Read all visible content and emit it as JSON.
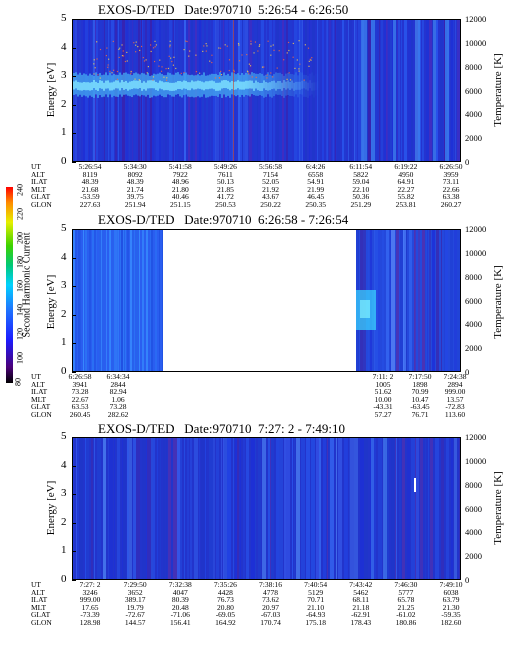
{
  "colorbar": {
    "label": "Second Harmonic Current",
    "ticks": [
      "240",
      "220",
      "200",
      "180",
      "160",
      "140",
      "120",
      "100",
      "80"
    ]
  },
  "row_labels": [
    "UT",
    "ALT",
    "ILAT",
    "MLT",
    "GLAT",
    "GLON"
  ],
  "chart_data": [
    {
      "type": "heatmap",
      "title": "EXOS-D/TED   Date:970710  5:26:54 - 6:26:50",
      "ylabel": "Energy [eV]",
      "ylabel_right": "Temperature [K]",
      "ylim": [
        0,
        5
      ],
      "ylim_right": [
        0,
        12000
      ],
      "yticks": [
        "0",
        "1",
        "2",
        "3",
        "4",
        "5"
      ],
      "yticks_right": [
        "0",
        "2000",
        "4000",
        "6000",
        "8000",
        "10000",
        "12000"
      ],
      "x_table": {
        "UT": [
          "5:26:54",
          "5:34:30",
          "5:41:58",
          "5:49:26",
          "5:56:58",
          "6:4:26",
          "6:11:54",
          "6:19:22",
          "6:26:50"
        ],
        "ALT": [
          "8119",
          "8092",
          "7922",
          "7611",
          "7154",
          "6558",
          "5822",
          "4950",
          "3959"
        ],
        "ILAT": [
          "48.39",
          "48.39",
          "48.96",
          "50.13",
          "52.05",
          "54.91",
          "59.04",
          "64.91",
          "73.11"
        ],
        "MLT": [
          "21.68",
          "21.74",
          "21.80",
          "21.85",
          "21.92",
          "21.99",
          "22.10",
          "22.27",
          "22.66"
        ],
        "GLAT": [
          "-53.59",
          "39.75",
          "40.46",
          "41.72",
          "43.67",
          "46.45",
          "50.36",
          "55.82",
          "63.38"
        ],
        "GLON": [
          "227.63",
          "251.94",
          "251.15",
          "250.53",
          "250.22",
          "250.35",
          "251.29",
          "253.81",
          "260.27"
        ]
      }
    },
    {
      "type": "heatmap",
      "title": "EXOS-D/TED   Date:970710  6:26:58 - 7:26:54",
      "ylabel": "Energy [eV]",
      "ylabel_right": "Temperature [K]",
      "ylim": [
        0,
        5
      ],
      "ylim_right": [
        0,
        12000
      ],
      "yticks": [
        "0",
        "1",
        "2",
        "3",
        "4",
        "5"
      ],
      "yticks_right": [
        "0",
        "2000",
        "4000",
        "6000",
        "8000",
        "10000",
        "12000"
      ],
      "x_table_left": {
        "UT": [
          "6:26:58",
          "6:34:34"
        ],
        "ALT": [
          "3941",
          "2844"
        ],
        "ILAT": [
          "73.28",
          "82.94"
        ],
        "MLT": [
          "22.67",
          "1.06"
        ],
        "GLAT": [
          "63.53",
          "73.28"
        ],
        "GLON": [
          "260.45",
          "282.62"
        ]
      },
      "x_table_right": {
        "UT": [
          "7:11: 2",
          "7:17:50",
          "7:24:38"
        ],
        "ALT": [
          "1005",
          "1898",
          "2894"
        ],
        "ILAT": [
          "51.62",
          "70.99",
          "999.00"
        ],
        "MLT": [
          "10.00",
          "10.47",
          "13.57"
        ],
        "GLAT": [
          "-43.31",
          "-63.45",
          "-72.83"
        ],
        "GLON": [
          "57.27",
          "76.71",
          "113.60"
        ]
      }
    },
    {
      "type": "heatmap",
      "title": "EXOS-D/TED   Date:970710  7:27: 2 - 7:49:10",
      "ylabel": "Energy [eV]",
      "ylabel_right": "Temperature [K]",
      "ylim": [
        0,
        5
      ],
      "ylim_right": [
        0,
        12000
      ],
      "yticks": [
        "0",
        "1",
        "2",
        "3",
        "4",
        "5"
      ],
      "yticks_right": [
        "0",
        "2000",
        "4000",
        "6000",
        "8000",
        "10000",
        "12000"
      ],
      "x_table": {
        "UT": [
          "7:27: 2",
          "7:29:50",
          "7:32:38",
          "7:35:26",
          "7:38:16",
          "7:40:54",
          "7:43:42",
          "7:46:30",
          "7:49:10"
        ],
        "ALT": [
          "3246",
          "3652",
          "4047",
          "4428",
          "4778",
          "5129",
          "5462",
          "5777",
          "6038"
        ],
        "ILAT": [
          "999.00",
          "389.17",
          "80.39",
          "76.73",
          "73.62",
          "70.71",
          "68.11",
          "65.78",
          "63.79"
        ],
        "MLT": [
          "17.65",
          "19.79",
          "20.48",
          "20.80",
          "20.97",
          "21.10",
          "21.18",
          "21.25",
          "21.30"
        ],
        "GLAT": [
          "-73.39",
          "-72.67",
          "-71.06",
          "-69.05",
          "-67.03",
          "-64.93",
          "-62.91",
          "-61.02",
          "-59.35"
        ],
        "GLON": [
          "128.98",
          "144.57",
          "156.41",
          "164.92",
          "170.74",
          "175.18",
          "178.43",
          "180.86",
          "182.60"
        ]
      }
    }
  ]
}
